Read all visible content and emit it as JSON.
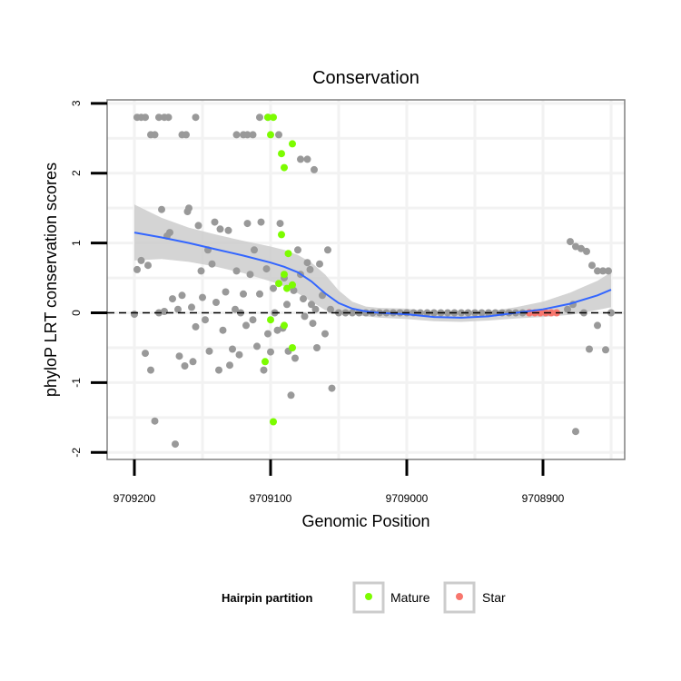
{
  "chart_data": {
    "type": "scatter",
    "title": "Conservation",
    "xlabel": "Genomic Position",
    "ylabel": "phyloP LRT conservation scores",
    "x_reversed": true,
    "xlim": [
      9709220,
      9708840
    ],
    "ylim": [
      -2.1,
      3.05
    ],
    "x_ticks": [
      9709200,
      9709100,
      9709000,
      9708900
    ],
    "x_tick_labels": [
      "9709200",
      "9709100",
      "9709000",
      "9708900"
    ],
    "y_ticks": [
      -2,
      -1,
      0,
      1,
      2,
      3
    ],
    "y_tick_labels": [
      "-2",
      "-1",
      "0",
      "1",
      "2",
      "3"
    ],
    "reference_line": {
      "y": 0,
      "style": "dashed"
    },
    "legend": {
      "title": "Hairpin partition",
      "position": "bottom",
      "entries": [
        {
          "label": "Mature",
          "color": "#7CFC00"
        },
        {
          "label": "Star",
          "color": "#F8766D"
        }
      ]
    },
    "colors": {
      "other": "#999999",
      "Mature": "#7CFC00",
      "Star": "#F8766D",
      "smooth": "#3366FF",
      "band": "#CCCCCC"
    },
    "series": [
      {
        "name": "Other",
        "color": "#999999",
        "points": [
          [
            9709198,
            2.8
          ],
          [
            9709195,
            2.8
          ],
          [
            9709192,
            2.8
          ],
          [
            9709188,
            2.55
          ],
          [
            9709185,
            2.55
          ],
          [
            9709182,
            2.8
          ],
          [
            9709178,
            2.8
          ],
          [
            9709175,
            2.8
          ],
          [
            9709165,
            2.55
          ],
          [
            9709162,
            2.55
          ],
          [
            9709155,
            2.8
          ],
          [
            9709125,
            2.55
          ],
          [
            9709120,
            2.55
          ],
          [
            9709117,
            2.55
          ],
          [
            9709113,
            2.55
          ],
          [
            9709108,
            2.8
          ],
          [
            9709102,
            2.8
          ],
          [
            9709094,
            2.55
          ],
          [
            9709078,
            2.2
          ],
          [
            9709073,
            2.2
          ],
          [
            9709068,
            2.05
          ],
          [
            9709200,
            -0.02
          ],
          [
            9709198,
            0.62
          ],
          [
            9709195,
            0.75
          ],
          [
            9709192,
            -0.58
          ],
          [
            9709190,
            0.68
          ],
          [
            9709188,
            -0.82
          ],
          [
            9709185,
            -1.55
          ],
          [
            9709182,
            0.0
          ],
          [
            9709180,
            1.48
          ],
          [
            9709178,
            0.02
          ],
          [
            9709176,
            1.1
          ],
          [
            9709174,
            1.15
          ],
          [
            9709172,
            0.2
          ],
          [
            9709170,
            -1.88
          ],
          [
            9709168,
            0.05
          ],
          [
            9709167,
            -0.62
          ],
          [
            9709165,
            0.25
          ],
          [
            9709163,
            -0.76
          ],
          [
            9709161,
            1.45
          ],
          [
            9709160,
            1.5
          ],
          [
            9709158,
            0.08
          ],
          [
            9709157,
            -0.7
          ],
          [
            9709155,
            -0.2
          ],
          [
            9709153,
            1.25
          ],
          [
            9709151,
            0.6
          ],
          [
            9709150,
            0.22
          ],
          [
            9709148,
            -0.1
          ],
          [
            9709146,
            0.9
          ],
          [
            9709145,
            -0.55
          ],
          [
            9709143,
            0.7
          ],
          [
            9709141,
            1.3
          ],
          [
            9709140,
            0.15
          ],
          [
            9709138,
            -0.82
          ],
          [
            9709137,
            1.2
          ],
          [
            9709135,
            -0.25
          ],
          [
            9709133,
            0.3
          ],
          [
            9709131,
            1.18
          ],
          [
            9709130,
            -0.75
          ],
          [
            9709128,
            -0.52
          ],
          [
            9709126,
            0.05
          ],
          [
            9709125,
            0.6
          ],
          [
            9709123,
            -0.6
          ],
          [
            9709122,
            0.0
          ],
          [
            9709120,
            0.27
          ],
          [
            9709118,
            -0.18
          ],
          [
            9709117,
            1.28
          ],
          [
            9709115,
            0.55
          ],
          [
            9709113,
            -0.1
          ],
          [
            9709112,
            0.9
          ],
          [
            9709110,
            -0.48
          ],
          [
            9709108,
            0.27
          ],
          [
            9709107,
            1.3
          ],
          [
            9709105,
            -0.82
          ],
          [
            9709103,
            0.63
          ],
          [
            9709102,
            -0.3
          ],
          [
            9709100,
            -0.56
          ],
          [
            9709098,
            0.35
          ],
          [
            9709097,
            0.0
          ],
          [
            9709095,
            -0.25
          ],
          [
            9709093,
            1.28
          ],
          [
            9709091,
            -0.22
          ],
          [
            9709090,
            0.5
          ],
          [
            9709088,
            0.12
          ],
          [
            9709087,
            -0.55
          ],
          [
            9709085,
            -1.18
          ],
          [
            9709083,
            0.32
          ],
          [
            9709082,
            -0.65
          ],
          [
            9709080,
            0.9
          ],
          [
            9709078,
            0.55
          ],
          [
            9709076,
            0.2
          ],
          [
            9709075,
            -0.05
          ],
          [
            9709073,
            0.72
          ],
          [
            9709071,
            0.62
          ],
          [
            9709070,
            0.12
          ],
          [
            9709069,
            -0.15
          ],
          [
            9709067,
            0.05
          ],
          [
            9709066,
            -0.5
          ],
          [
            9709064,
            0.7
          ],
          [
            9709062,
            0.25
          ],
          [
            9709060,
            -0.3
          ],
          [
            9709058,
            0.9
          ],
          [
            9709056,
            0.05
          ],
          [
            9709055,
            -1.08
          ],
          [
            9709050,
            0.0
          ],
          [
            9709045,
            0.0
          ],
          [
            9709040,
            0.0
          ],
          [
            9709035,
            0.0
          ],
          [
            9709030,
            0.0
          ],
          [
            9709025,
            0.0
          ],
          [
            9709020,
            0.0
          ],
          [
            9709015,
            0.0
          ],
          [
            9709010,
            0.0
          ],
          [
            9709005,
            0.0
          ],
          [
            9709000,
            0.0
          ],
          [
            9708995,
            0.0
          ],
          [
            9708990,
            0.0
          ],
          [
            9708985,
            0.0
          ],
          [
            9708980,
            0.0
          ],
          [
            9708975,
            0.0
          ],
          [
            9708970,
            0.0
          ],
          [
            9708965,
            0.0
          ],
          [
            9708960,
            0.0
          ],
          [
            9708955,
            0.0
          ],
          [
            9708950,
            0.0
          ],
          [
            9708945,
            0.0
          ],
          [
            9708940,
            0.0
          ],
          [
            9708935,
            0.0
          ],
          [
            9708930,
            0.0
          ],
          [
            9708925,
            0.0
          ],
          [
            9708920,
            0.0
          ],
          [
            9708915,
            0.0
          ],
          [
            9708910,
            0.0
          ],
          [
            9708880,
            1.02
          ],
          [
            9708876,
            0.95
          ],
          [
            9708872,
            0.92
          ],
          [
            9708868,
            0.88
          ],
          [
            9708864,
            0.68
          ],
          [
            9708860,
            0.6
          ],
          [
            9708856,
            0.6
          ],
          [
            9708852,
            0.6
          ],
          [
            9708878,
            0.12
          ],
          [
            9708876,
            -1.7
          ],
          [
            9708866,
            -0.52
          ],
          [
            9708860,
            -0.18
          ],
          [
            9708854,
            -0.53
          ],
          [
            9708870,
            0.0
          ],
          [
            9708882,
            0.05
          ],
          [
            9708850,
            0.0
          ]
        ]
      },
      {
        "name": "Mature",
        "color": "#7CFC00",
        "points": [
          [
            9709102,
            2.8
          ],
          [
            9709098,
            2.8
          ],
          [
            9709100,
            2.55
          ],
          [
            9709092,
            2.28
          ],
          [
            9709090,
            2.08
          ],
          [
            9709084,
            2.42
          ],
          [
            9709092,
            1.12
          ],
          [
            9709087,
            0.85
          ],
          [
            9709090,
            0.55
          ],
          [
            9709094,
            0.42
          ],
          [
            9709088,
            0.35
          ],
          [
            9709084,
            0.4
          ],
          [
            9709090,
            -0.18
          ],
          [
            9709100,
            -0.1
          ],
          [
            9709084,
            -0.5
          ],
          [
            9709104,
            -0.7
          ],
          [
            9709098,
            -1.56
          ]
        ]
      },
      {
        "name": "Star",
        "color": "#F8766D",
        "points": [
          [
            9708910,
            0.0
          ],
          [
            9708906,
            0.0
          ],
          [
            9708902,
            0.0
          ],
          [
            9708898,
            0.0
          ],
          [
            9708894,
            0.0
          ],
          [
            9708890,
            0.0
          ]
        ]
      }
    ],
    "smooth": {
      "x": [
        9709200,
        9709180,
        9709160,
        9709140,
        9709120,
        9709100,
        9709090,
        9709080,
        9709070,
        9709060,
        9709050,
        9709040,
        9709030,
        9709020,
        9709000,
        9708980,
        9708960,
        9708940,
        9708920,
        9708900,
        9708880,
        9708860,
        9708850
      ],
      "y": [
        1.15,
        1.08,
        1.0,
        0.91,
        0.82,
        0.72,
        0.66,
        0.58,
        0.45,
        0.28,
        0.14,
        0.06,
        0.02,
        0.0,
        -0.02,
        -0.06,
        -0.07,
        -0.05,
        0.0,
        0.05,
        0.13,
        0.25,
        0.33
      ],
      "band_lower": [
        0.75,
        0.77,
        0.73,
        0.66,
        0.57,
        0.45,
        0.38,
        0.28,
        0.16,
        0.04,
        -0.01,
        -0.03,
        -0.05,
        -0.07,
        -0.09,
        -0.12,
        -0.13,
        -0.11,
        -0.08,
        -0.06,
        -0.03,
        0.04,
        0.08
      ],
      "band_upper": [
        1.55,
        1.36,
        1.22,
        1.12,
        1.03,
        0.95,
        0.9,
        0.83,
        0.72,
        0.55,
        0.32,
        0.16,
        0.09,
        0.07,
        0.06,
        0.01,
        -0.01,
        0.02,
        0.08,
        0.16,
        0.29,
        0.46,
        0.58
      ]
    }
  }
}
